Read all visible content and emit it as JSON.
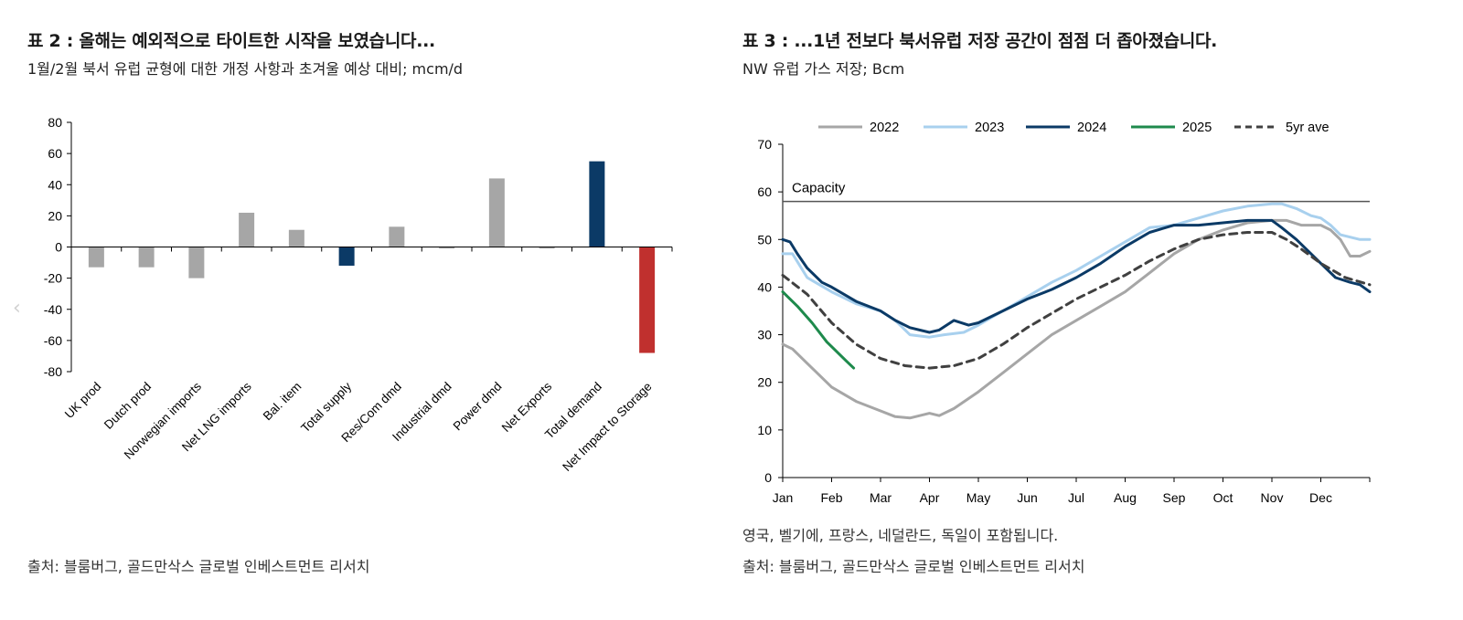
{
  "left": {
    "title": "표 2 : 올해는 예외적으로 타이트한 시작을 보였습니다...",
    "subtitle": "1월/2월 북서 유럽 균형에 대한 개정 사항과 초겨울 예상 대비; mcm/d",
    "source": "출처: 블룸버그, 골드만삭스 글로벌 인베스트먼트 리서치"
  },
  "right": {
    "title": "표 3 : ...1년 전보다 북서유럽 저장 공간이 점점 더 좁아졌습니다.",
    "subtitle": "NW 유럽 가스 저장; Bcm",
    "note": "영국, 벨기에, 프랑스, 네덜란드, 독일이 포함됩니다.",
    "source": "출처: 블룸버그, 골드만삭스 글로벌 인베스트먼트 리서치"
  },
  "chart_data": [
    {
      "type": "bar",
      "title": "표 2 : 올해는 예외적으로 타이트한 시작을 보였습니다...",
      "ylabel": "mcm/d",
      "ylim": [
        -80,
        80
      ],
      "yticks": [
        80,
        60,
        40,
        20,
        0,
        -20,
        -40,
        -60,
        -80
      ],
      "categories": [
        "UK prod",
        "Dutch prod",
        "Norwegian imports",
        "Net LNG imports",
        "Bal. item",
        "Total supply",
        "Res/Com dmd",
        "Industrial dmd",
        "Power dmd",
        "Net Exports",
        "Total demand",
        "Net Impact to Storage"
      ],
      "values": [
        -13,
        -13,
        -20,
        22,
        11,
        -12,
        13,
        -1,
        44,
        -1,
        55,
        -68
      ],
      "colors": [
        "#a6a6a6",
        "#a6a6a6",
        "#a6a6a6",
        "#a6a6a6",
        "#a6a6a6",
        "#0b3a66",
        "#a6a6a6",
        "#a6a6a6",
        "#a6a6a6",
        "#a6a6a6",
        "#0b3a66",
        "#c0302e"
      ]
    },
    {
      "type": "line",
      "title": "표 3 : ...1년 전보다 북서유럽 저장 공간이 점점 더 좁아졌습니다.",
      "ylabel": "Bcm",
      "ylim": [
        0,
        70
      ],
      "yticks": [
        0,
        10,
        20,
        30,
        40,
        50,
        60,
        70
      ],
      "xlim": [
        0,
        12
      ],
      "months": [
        "Jan",
        "Feb",
        "Mar",
        "Apr",
        "May",
        "Jun",
        "Jul",
        "Aug",
        "Sep",
        "Oct",
        "Nov",
        "Dec"
      ],
      "capacity": {
        "label": "Capacity",
        "value": 58
      },
      "legend_position": "top",
      "series": [
        {
          "name": "2022",
          "color": "#a6a6a6",
          "dash": false,
          "x": [
            0,
            0.2,
            0.5,
            1,
            1.5,
            2,
            2.3,
            2.6,
            3,
            3.2,
            3.5,
            4,
            4.5,
            5,
            5.5,
            6,
            6.5,
            7,
            7.5,
            8,
            8.5,
            9,
            9.5,
            10,
            10.3,
            10.6,
            11,
            11.2,
            11.4,
            11.6,
            11.8,
            12
          ],
          "y": [
            28,
            27,
            24,
            19,
            16,
            14,
            12.8,
            12.5,
            13.5,
            13,
            14.5,
            18,
            22,
            26,
            30,
            33,
            36,
            39,
            43,
            47,
            50,
            52,
            53.5,
            54,
            54,
            53,
            53,
            52,
            50,
            46.5,
            46.5,
            47.5
          ]
        },
        {
          "name": "2023",
          "color": "#a8d0ee",
          "dash": false,
          "x": [
            0,
            0.2,
            0.5,
            1,
            1.5,
            2,
            2.3,
            2.6,
            3,
            3.3,
            3.7,
            4,
            4.5,
            5,
            5.5,
            6,
            6.5,
            7,
            7.5,
            8,
            8.5,
            9,
            9.5,
            10,
            10.2,
            10.5,
            10.8,
            11,
            11.2,
            11.4,
            11.6,
            11.8,
            12
          ],
          "y": [
            47,
            47,
            42,
            39,
            36.5,
            35,
            33,
            30,
            29.5,
            30,
            30.5,
            32,
            35,
            38,
            41,
            43.5,
            46.5,
            49.5,
            52.5,
            53,
            54.5,
            56,
            57,
            57.5,
            57.5,
            56.5,
            55,
            54.5,
            53,
            51,
            50.5,
            50,
            50
          ]
        },
        {
          "name": "2024",
          "color": "#0b3a66",
          "dash": false,
          "x": [
            0,
            0.15,
            0.3,
            0.5,
            0.8,
            1,
            1.5,
            2,
            2.3,
            2.6,
            3,
            3.2,
            3.5,
            3.8,
            4,
            4.5,
            5,
            5.5,
            6,
            6.5,
            7,
            7.5,
            8,
            8.5,
            9,
            9.5,
            10,
            10.2,
            10.5,
            10.8,
            11,
            11.3,
            11.6,
            11.8,
            12
          ],
          "y": [
            50,
            49.5,
            47,
            44,
            41,
            40,
            37,
            35,
            33,
            31.5,
            30.5,
            31,
            33,
            32,
            32.5,
            35,
            37.5,
            39.5,
            42,
            45,
            48.5,
            51.5,
            53,
            53,
            53.5,
            54,
            54,
            52.5,
            50,
            47,
            45,
            42,
            41,
            40.5,
            39
          ]
        },
        {
          "name": "2025",
          "color": "#1e8a4c",
          "dash": false,
          "x": [
            0,
            0.1,
            0.3,
            0.6,
            0.9,
            1.1,
            1.3,
            1.45
          ],
          "y": [
            39,
            38,
            36,
            32.5,
            28.5,
            26.5,
            24.5,
            23
          ]
        },
        {
          "name": "5yr ave",
          "color": "#404040",
          "dash": true,
          "x": [
            0,
            0.5,
            1,
            1.5,
            2,
            2.5,
            3,
            3.5,
            4,
            4.5,
            5,
            5.5,
            6,
            6.5,
            7,
            7.5,
            8,
            8.5,
            9,
            9.5,
            10,
            10.3,
            10.6,
            11,
            11.5,
            12
          ],
          "y": [
            42.5,
            38.5,
            32.5,
            28,
            25,
            23.5,
            23,
            23.5,
            25,
            28,
            31.5,
            34.5,
            37.5,
            40,
            42.5,
            45.5,
            48,
            50,
            51,
            51.5,
            51.5,
            50,
            48,
            45,
            42,
            40.5
          ]
        }
      ]
    }
  ]
}
